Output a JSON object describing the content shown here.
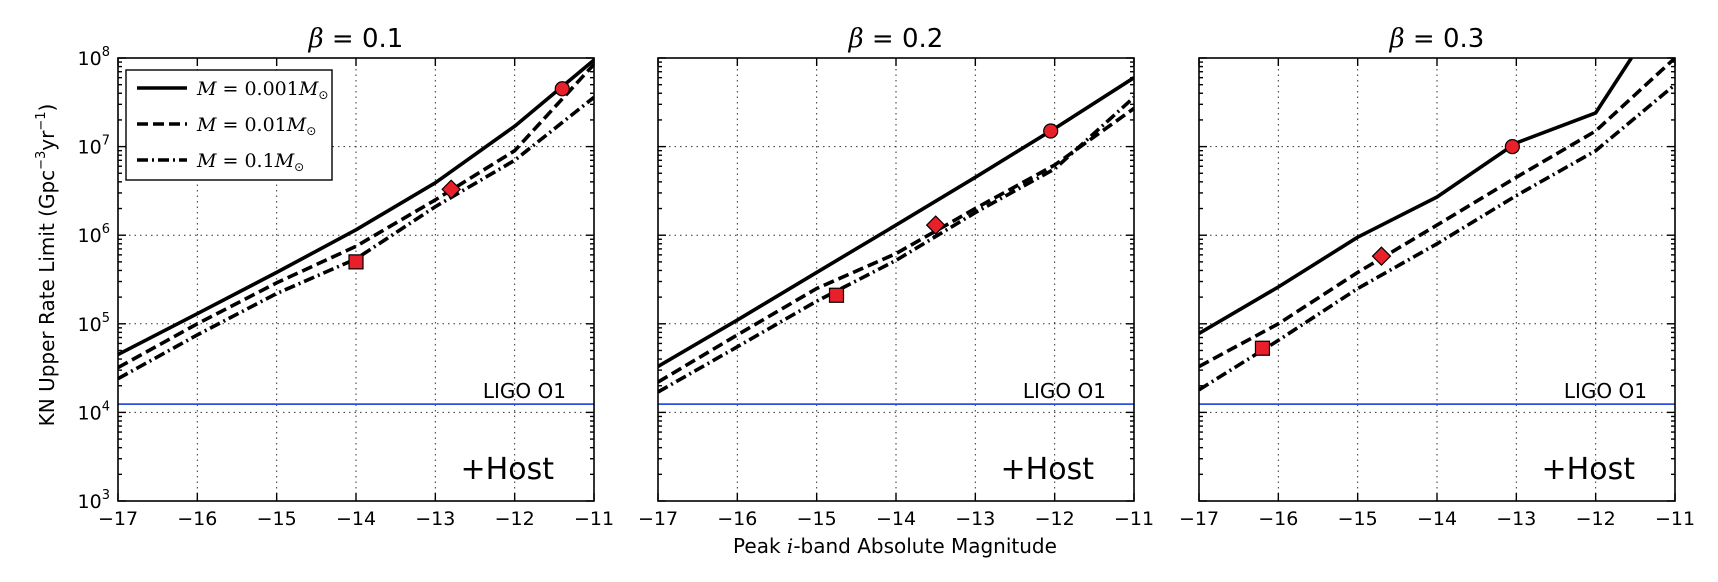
{
  "figure": {
    "ylabel_main": "KN Upper Rate Limit (Gpc",
    "ylabel_exp1": "−3",
    "ylabel_mid": "yr",
    "ylabel_exp2": "−1",
    "ylabel_end": ")",
    "xlabel_pre": "Peak ",
    "xlabel_var": "i",
    "xlabel_post": "-band Absolute Magnitude"
  },
  "legend": {
    "entries": [
      {
        "var": "M",
        "eq": " = 0.001",
        "unit": "M",
        "sub": "⊙",
        "style": "solid"
      },
      {
        "var": "M",
        "eq": " = 0.01",
        "unit": "M",
        "sub": "⊙",
        "style": "dashed"
      },
      {
        "var": "M",
        "eq": " = 0.1",
        "unit": "M",
        "sub": "⊙",
        "style": "dashdot"
      }
    ],
    "placement": "upper-left of first panel"
  },
  "colors": {
    "reference_line": "#2b4fe0",
    "markers": "#e8202a",
    "lines": "#000000"
  },
  "chart_data": [
    {
      "type": "line",
      "title_symbol": "β",
      "title_value": " = 0.1",
      "xlim": [
        -17,
        -11
      ],
      "ylim": [
        1000,
        100000000
      ],
      "yscale": "log",
      "x_ticks": [
        "−17",
        "−16",
        "−15",
        "−14",
        "−13",
        "−12",
        "−11"
      ],
      "y_ticks": [
        {
          "base": "10",
          "exp": "3"
        },
        {
          "base": "10",
          "exp": "4"
        },
        {
          "base": "10",
          "exp": "5"
        },
        {
          "base": "10",
          "exp": "6"
        },
        {
          "base": "10",
          "exp": "7"
        },
        {
          "base": "10",
          "exp": "8"
        }
      ],
      "grid": true,
      "reference": {
        "label": "LIGO O1",
        "value": 12400
      },
      "annotation": "+Host",
      "series": [
        {
          "style": "solid",
          "x": [
            -17,
            -16,
            -15,
            -14,
            -13,
            -12,
            -11
          ],
          "y": [
            45000,
            130000,
            380000,
            1150000,
            3900000,
            17000000,
            95000000
          ]
        },
        {
          "style": "dashed",
          "x": [
            -17,
            -16,
            -15,
            -14,
            -13,
            -12,
            -11
          ],
          "y": [
            32000,
            100000,
            290000,
            750000,
            2500000,
            9000000,
            85000000
          ]
        },
        {
          "style": "dashdot",
          "x": [
            -17,
            -16,
            -15,
            -14,
            -13,
            -12,
            -11
          ],
          "y": [
            24000,
            75000,
            220000,
            540000,
            2100000,
            7000000,
            36000000
          ]
        }
      ],
      "markers": [
        {
          "shape": "square",
          "x": -14.0,
          "y": 500000
        },
        {
          "shape": "diamond",
          "x": -12.8,
          "y": 3300000
        },
        {
          "shape": "circle",
          "x": -11.4,
          "y": 45000000
        }
      ]
    },
    {
      "type": "line",
      "title_symbol": "β",
      "title_value": " = 0.2",
      "xlim": [
        -17,
        -11
      ],
      "ylim": [
        1000,
        100000000
      ],
      "yscale": "log",
      "x_ticks": [
        "−17",
        "−16",
        "−15",
        "−14",
        "−13",
        "−12",
        "−11"
      ],
      "y_ticks": [],
      "grid": true,
      "reference": {
        "label": "LIGO O1",
        "value": 12400
      },
      "annotation": "+Host",
      "series": [
        {
          "style": "solid",
          "x": [
            -17,
            -16,
            -15,
            -14,
            -13,
            -12,
            -11
          ],
          "y": [
            33000,
            110000,
            380000,
            1300000,
            4500000,
            16000000,
            60000000
          ]
        },
        {
          "style": "dashed",
          "x": [
            -17,
            -16,
            -15,
            -14,
            -13,
            -12,
            -11
          ],
          "y": [
            22000,
            75000,
            250000,
            620000,
            2000000,
            6200000,
            27000000
          ]
        },
        {
          "style": "dashdot",
          "x": [
            -17,
            -16,
            -15,
            -14,
            -13,
            -12,
            -11
          ],
          "y": [
            17000,
            55000,
            180000,
            520000,
            1800000,
            5600000,
            36000000
          ]
        }
      ],
      "markers": [
        {
          "shape": "square",
          "x": -14.75,
          "y": 210000
        },
        {
          "shape": "diamond",
          "x": -13.5,
          "y": 1300000
        },
        {
          "shape": "circle",
          "x": -12.05,
          "y": 15000000
        }
      ]
    },
    {
      "type": "line",
      "title_symbol": "β",
      "title_value": " = 0.3",
      "xlim": [
        -17,
        -11
      ],
      "ylim": [
        1000,
        100000000
      ],
      "yscale": "log",
      "x_ticks": [
        "−17",
        "−16",
        "−15",
        "−14",
        "−13",
        "−12",
        "−11"
      ],
      "y_ticks": [],
      "grid": true,
      "reference": {
        "label": "LIGO O1",
        "value": 12400
      },
      "annotation": "+Host",
      "series": [
        {
          "style": "solid",
          "x": [
            -17,
            -16,
            -15,
            -14,
            -13,
            -12,
            -11.55
          ],
          "y": [
            78000,
            260000,
            950000,
            2700000,
            11000000,
            24000000,
            100000000
          ]
        },
        {
          "style": "dashed",
          "x": [
            -17,
            -16,
            -15,
            -14,
            -13,
            -12,
            -11
          ],
          "y": [
            33000,
            100000,
            380000,
            1300000,
            4500000,
            15000000,
            100000000
          ]
        },
        {
          "style": "dashdot",
          "x": [
            -17,
            -16,
            -15,
            -14,
            -13,
            -12,
            -11
          ],
          "y": [
            18000,
            65000,
            250000,
            800000,
            2800000,
            9000000,
            50000000
          ]
        }
      ],
      "markers": [
        {
          "shape": "square",
          "x": -16.2,
          "y": 53000
        },
        {
          "shape": "diamond",
          "x": -14.7,
          "y": 580000
        },
        {
          "shape": "circle",
          "x": -13.05,
          "y": 10000000
        }
      ]
    }
  ]
}
